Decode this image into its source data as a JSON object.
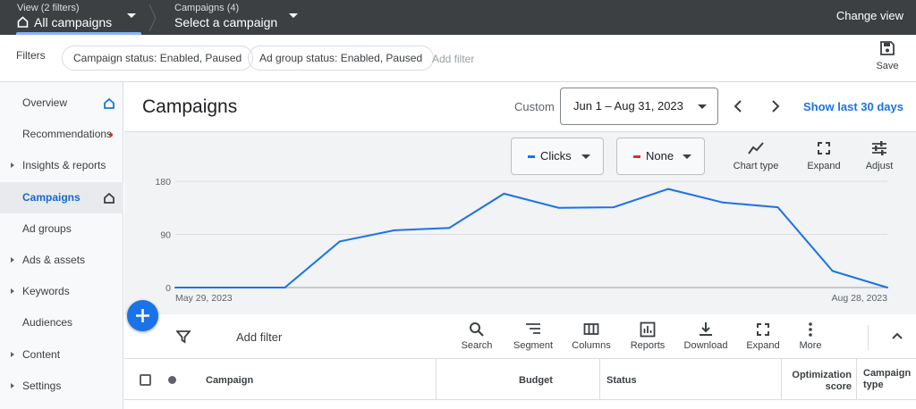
{
  "topbar": {
    "view_label": "View (2 filters)",
    "view_value": "All campaigns",
    "campaigns_label": "Campaigns (4)",
    "campaigns_value": "Select a campaign",
    "change_view": "Change view"
  },
  "filters": {
    "label": "Filters",
    "chips": [
      "Campaign status: Enabled, Paused",
      "Ad group status: Enabled, Paused"
    ],
    "add_filter": "Add filter",
    "save": "Save"
  },
  "sidebar": {
    "items": [
      {
        "label": "Overview",
        "icon": "home-icon"
      },
      {
        "label": "Recommendations",
        "badge": "red-dot"
      },
      {
        "label": "Insights & reports",
        "expandable": true
      },
      {
        "label": "Campaigns",
        "active": true,
        "icon": "home-icon"
      },
      {
        "label": "Ad groups"
      },
      {
        "label": "Ads & assets",
        "expandable": true
      },
      {
        "label": "Keywords",
        "expandable": true
      },
      {
        "label": "Audiences"
      },
      {
        "label": "Content",
        "expandable": true
      },
      {
        "label": "Settings",
        "expandable": true
      }
    ]
  },
  "header": {
    "title": "Campaigns",
    "range_type": "Custom",
    "date_range": "Jun 1 – Aug 31, 2023",
    "show_last": "Show last 30 days"
  },
  "chart_controls": {
    "metric1": "Clicks",
    "metric1_color": "#1a73e8",
    "metric2": "None",
    "metric2_color": "#d93025",
    "chart_type": "Chart type",
    "expand": "Expand",
    "adjust": "Adjust"
  },
  "chart_data": {
    "type": "line",
    "x": [
      "May 29, 2023",
      "Jun 5, 2023",
      "Jun 12, 2023",
      "Jun 19, 2023",
      "Jun 26, 2023",
      "Jul 3, 2023",
      "Jul 10, 2023",
      "Jul 17, 2023",
      "Jul 24, 2023",
      "Jul 31, 2023",
      "Aug 7, 2023",
      "Aug 14, 2023",
      "Aug 21, 2023",
      "Aug 28, 2023"
    ],
    "series": [
      {
        "name": "Clicks",
        "color": "#1a73e8",
        "values": [
          0,
          0,
          0,
          78,
          97,
          101,
          159,
          135,
          136,
          167,
          144,
          136,
          28,
          0
        ]
      }
    ],
    "yticks": [
      "0",
      "90",
      "180"
    ],
    "ylim": [
      0,
      180
    ],
    "xtick_labels": [
      "May 29, 2023",
      "Aug 28, 2023"
    ],
    "grid": true
  },
  "toolbar": {
    "add_filter": "Add filter",
    "tools": [
      "Search",
      "Segment",
      "Columns",
      "Reports",
      "Download",
      "Expand",
      "More"
    ]
  },
  "table": {
    "headers": [
      "Campaign",
      "Budget",
      "Status",
      "Optimization score",
      "Campaign type"
    ]
  },
  "colors": {
    "accent": "#1a73e8",
    "topbar": "#3c4043"
  }
}
